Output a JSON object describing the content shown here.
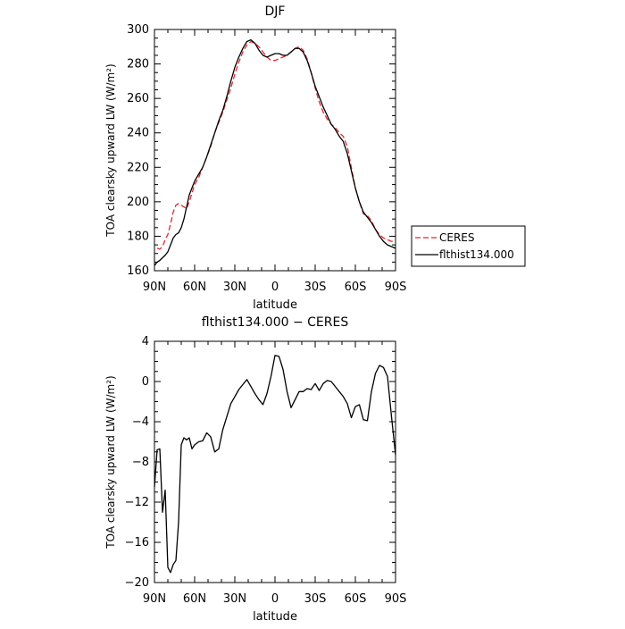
{
  "chart_data": [
    {
      "type": "line",
      "title": "DJF",
      "xlabel": "latitude",
      "ylabel": "TOA clearsky upward LW (W/m²)",
      "xlim": [
        -90,
        90
      ],
      "ylim": [
        160,
        300
      ],
      "x_ticks": [
        -90,
        -60,
        -30,
        0,
        30,
        60,
        90
      ],
      "x_tick_labels": [
        "90N",
        "60N",
        "30N",
        "0",
        "30S",
        "60S",
        "90S"
      ],
      "y_ticks": [
        160,
        180,
        200,
        220,
        240,
        260,
        280,
        300
      ],
      "y_tick_labels": [
        "160",
        "180",
        "200",
        "220",
        "240",
        "260",
        "280",
        "300"
      ],
      "grid": false,
      "legend": "outside right",
      "series": [
        {
          "name": "CERES",
          "color": "#e8272a",
          "dash": "dashed",
          "x": [
            -88,
            -86,
            -84,
            -82,
            -80,
            -78,
            -76,
            -74,
            -72,
            -70,
            -68,
            -66,
            -64,
            -62,
            -60,
            -57,
            -54,
            -51,
            -48,
            -45,
            -42,
            -39,
            -36,
            -33,
            -30,
            -27,
            -24,
            -21,
            -18,
            -15,
            -12,
            -9,
            -6,
            -3,
            0,
            3,
            6,
            9,
            12,
            15,
            18,
            21,
            24,
            27,
            30,
            33,
            36,
            39,
            42,
            45,
            48,
            51,
            54,
            57,
            60,
            63,
            66,
            69,
            72,
            75,
            78,
            81,
            84,
            87,
            90
          ],
          "y": [
            173,
            172.5,
            174,
            178,
            181,
            187,
            194,
            198,
            199,
            198,
            197,
            196,
            200,
            205,
            210,
            214,
            220,
            226,
            232,
            240,
            246,
            252,
            259,
            266,
            274,
            281,
            287,
            291,
            293,
            292,
            290,
            287,
            284,
            282,
            282,
            283,
            284,
            285,
            287,
            289,
            290,
            288,
            283,
            275,
            266,
            258,
            252,
            248,
            245,
            243,
            240,
            238,
            232,
            220,
            208,
            200,
            193,
            192,
            189,
            184,
            181,
            179,
            178,
            177,
            177
          ]
        },
        {
          "name": "flthist134.000",
          "color": "#000000",
          "dash": "solid",
          "x": [
            -90,
            -88,
            -86,
            -84,
            -82,
            -80,
            -78,
            -76,
            -74,
            -72,
            -70,
            -68,
            -66,
            -64,
            -62,
            -60,
            -57,
            -54,
            -51,
            -48,
            -45,
            -42,
            -39,
            -36,
            -33,
            -30,
            -27,
            -24,
            -21,
            -18,
            -15,
            -12,
            -9,
            -6,
            -3,
            0,
            3,
            6,
            9,
            12,
            15,
            18,
            21,
            24,
            27,
            30,
            33,
            36,
            39,
            42,
            45,
            48,
            51,
            54,
            57,
            60,
            63,
            66,
            69,
            72,
            75,
            78,
            81,
            84,
            87,
            90
          ],
          "y": [
            163,
            165,
            166,
            167.5,
            169,
            171,
            175,
            179,
            181,
            182,
            185,
            190,
            197,
            204,
            208,
            212,
            216,
            220,
            226,
            233,
            240,
            247,
            253,
            261,
            270,
            278,
            284,
            289,
            293,
            294,
            292,
            288,
            285,
            284,
            285,
            286,
            286,
            285,
            285,
            287,
            289,
            289,
            287,
            282,
            275,
            267,
            261,
            255,
            250,
            245,
            242,
            238,
            235,
            228,
            218,
            208,
            200,
            194,
            191,
            188,
            184,
            180,
            177,
            175,
            174,
            173
          ]
        }
      ]
    },
    {
      "type": "line",
      "title": "flthist134.000 − CERES",
      "xlabel": "latitude",
      "ylabel": "TOA clearsky upward LW (W/m²)",
      "xlim": [
        -90,
        90
      ],
      "ylim": [
        -20,
        4
      ],
      "x_ticks": [
        -90,
        -60,
        -30,
        0,
        30,
        60,
        90
      ],
      "x_tick_labels": [
        "90N",
        "60N",
        "30N",
        "0",
        "30S",
        "60S",
        "90S"
      ],
      "y_ticks": [
        -20,
        -16,
        -12,
        -8,
        -4,
        0,
        4
      ],
      "y_tick_labels": [
        "−20",
        "−16",
        "−12",
        "−8",
        "−4",
        "0",
        "4"
      ],
      "grid": false,
      "series": [
        {
          "color": "#000000",
          "dash": "solid",
          "x": [
            -90,
            -88,
            -86,
            -84,
            -82,
            -80,
            -78,
            -76,
            -74,
            -72,
            -70,
            -68,
            -66,
            -64,
            -62,
            -60,
            -57,
            -54,
            -51,
            -48,
            -45,
            -42,
            -39,
            -36,
            -33,
            -30,
            -27,
            -24,
            -21,
            -18,
            -15,
            -12,
            -9,
            -6,
            -3,
            0,
            3,
            6,
            9,
            12,
            15,
            18,
            21,
            24,
            27,
            30,
            33,
            36,
            39,
            42,
            45,
            48,
            51,
            54,
            57,
            60,
            63,
            66,
            69,
            72,
            75,
            78,
            81,
            84,
            87,
            90
          ],
          "y": [
            -10.5,
            -6.8,
            -6.7,
            -13,
            -10.8,
            -18.5,
            -19,
            -18.2,
            -17.8,
            -14,
            -6.3,
            -5.6,
            -5.8,
            -5.6,
            -6.7,
            -6.3,
            -6,
            -5.9,
            -5.1,
            -5.5,
            -7,
            -6.7,
            -4.8,
            -3.5,
            -2.2,
            -1.5,
            -0.8,
            -0.3,
            0.2,
            -0.5,
            -1.2,
            -1.8,
            -2.3,
            -1.2,
            0.5,
            2.6,
            2.5,
            1.2,
            -1,
            -2.6,
            -1.8,
            -1,
            -1,
            -0.7,
            -0.8,
            -0.2,
            -0.9,
            -0.2,
            0.1,
            0,
            -0.5,
            -1,
            -1.5,
            -2.2,
            -3.6,
            -2.5,
            -2.3,
            -3.8,
            -3.9,
            -1,
            0.8,
            1.6,
            1.4,
            0.5,
            -3.5,
            -7.3
          ]
        }
      ]
    }
  ]
}
